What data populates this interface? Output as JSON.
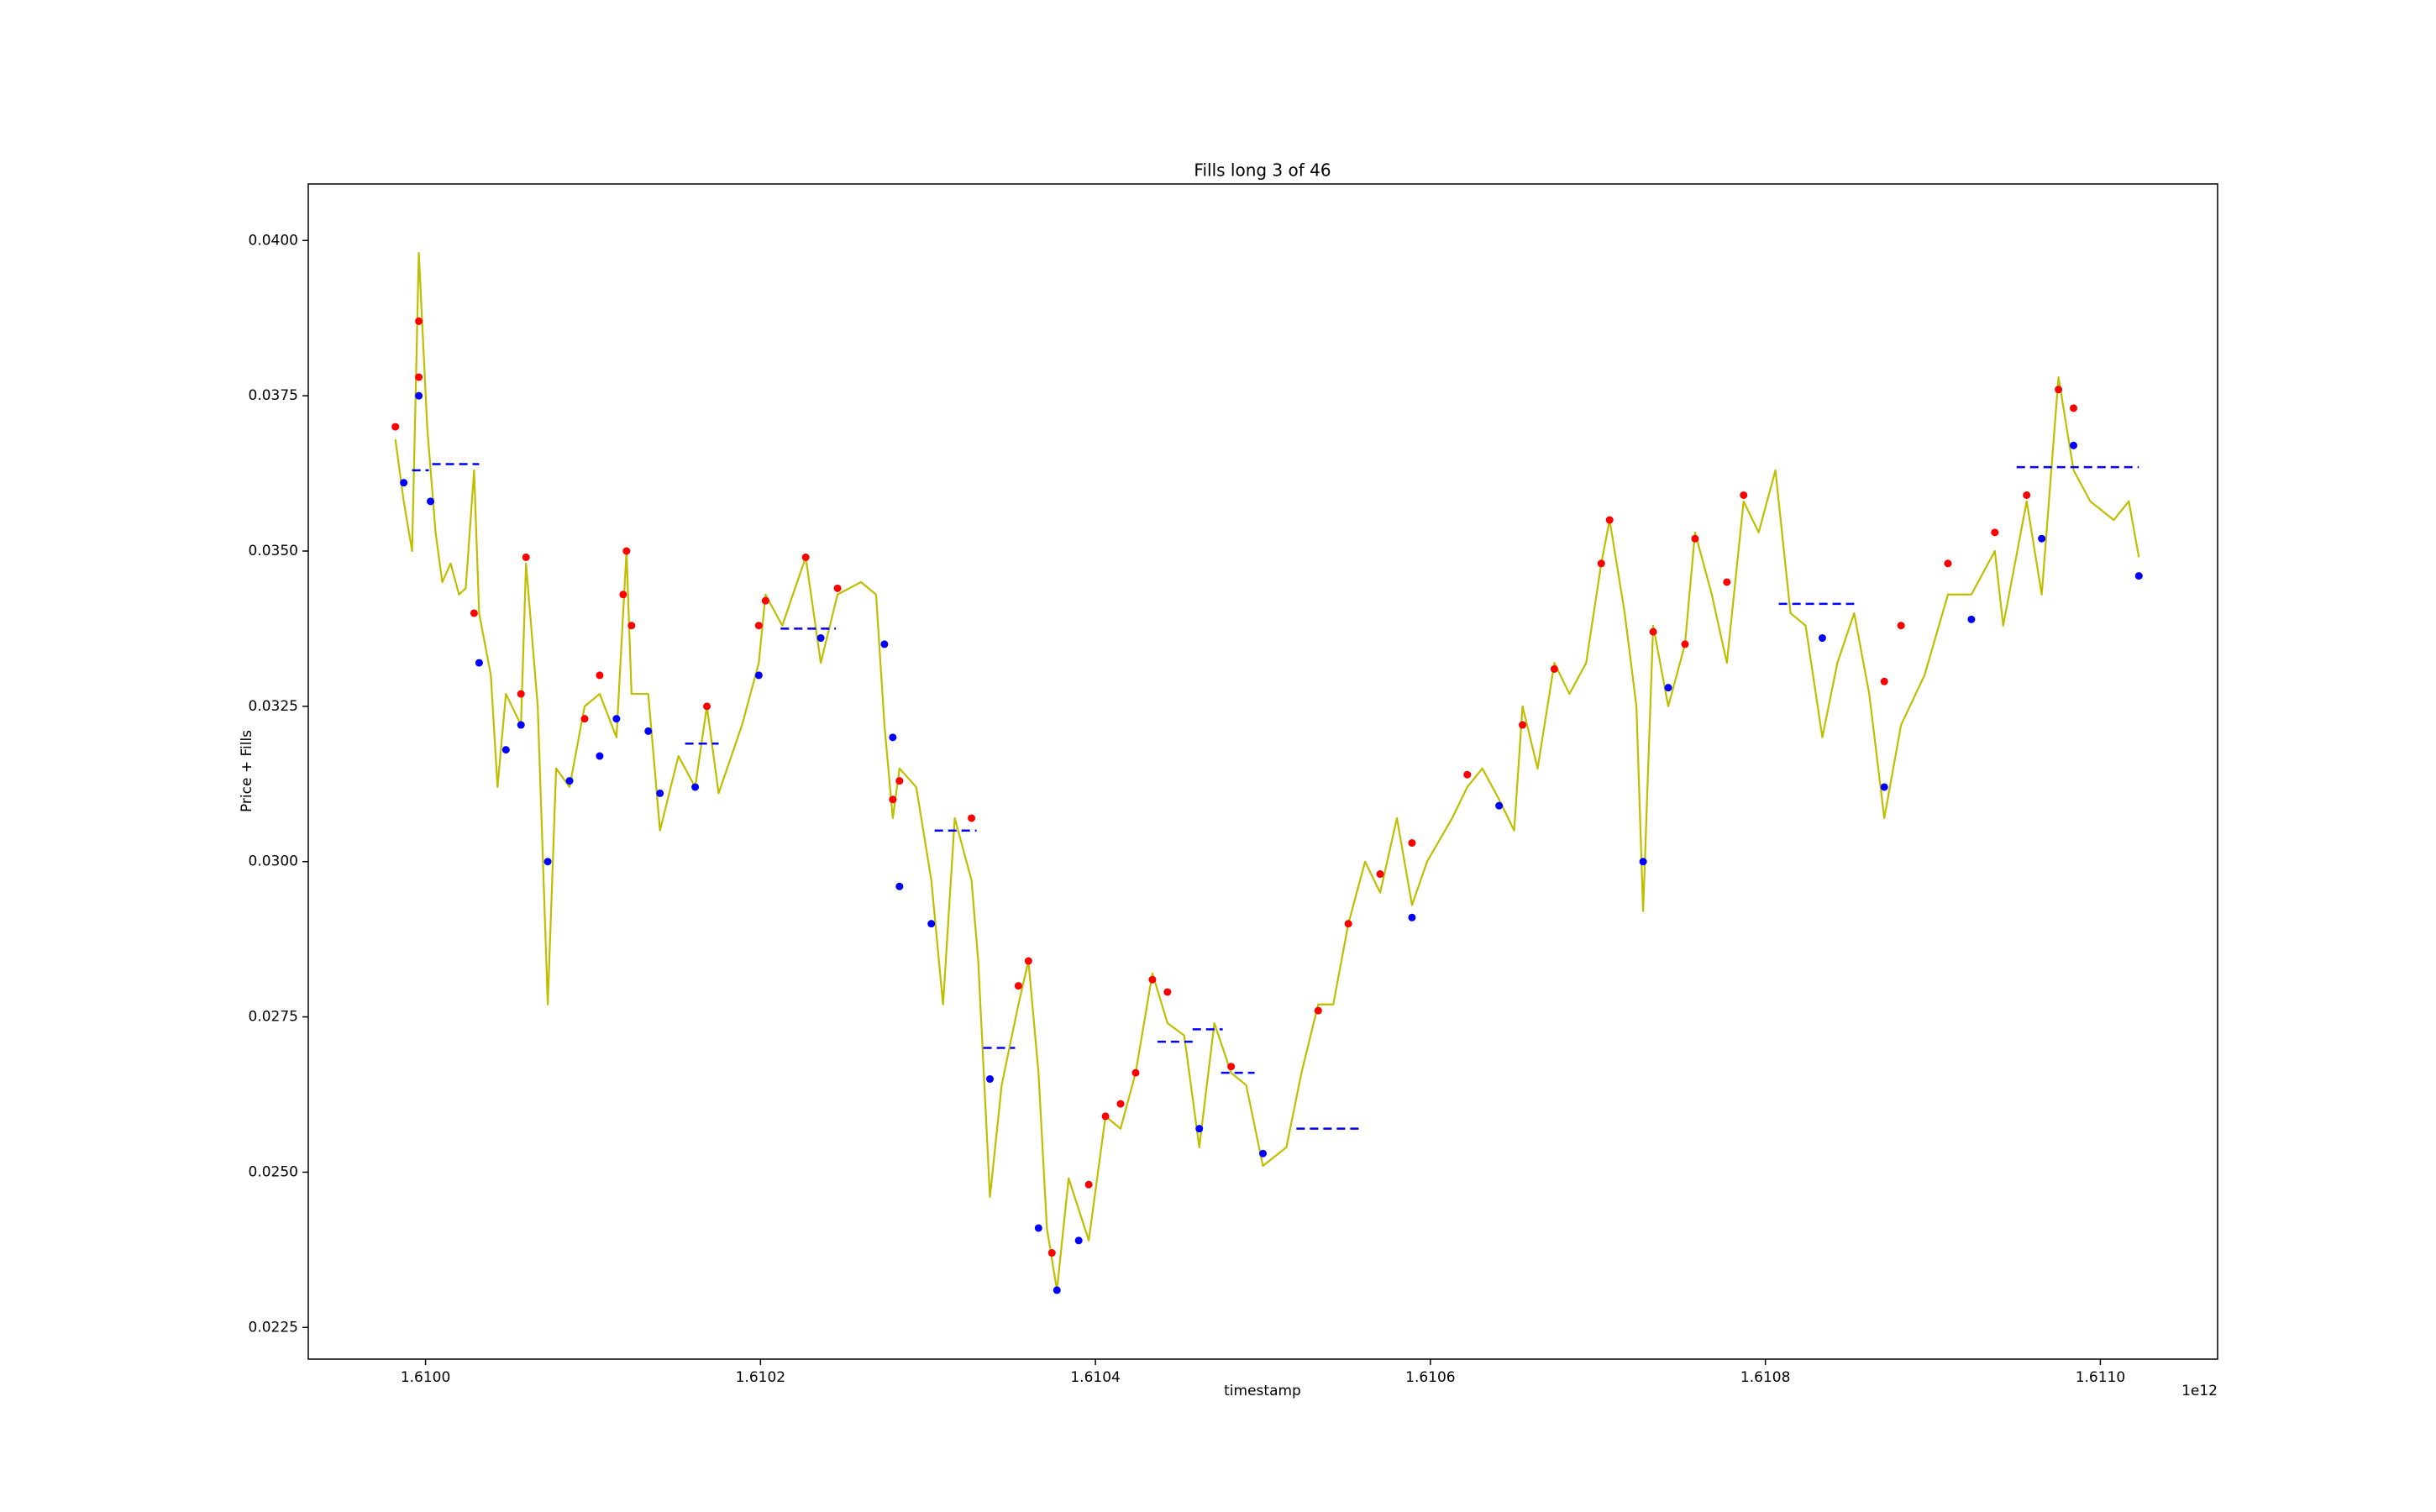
{
  "chart_data": {
    "type": "line",
    "title": "Fills long 3 of 46",
    "x_label": "timestamp",
    "y_label": "Price + Fills",
    "x_offset_label": "1e12",
    "xlim": [
      1.60993,
      1.61107
    ],
    "ylim": [
      0.02199,
      0.04091
    ],
    "xticks": [
      {
        "value": 1.61,
        "label": "1.6100"
      },
      1.6102,
      1.6104,
      1.6106,
      1.6108,
      {
        "value": 1.611,
        "label": "1.6110"
      }
    ],
    "yticks": [
      0.0225,
      {
        "value": 0.025,
        "label": "0.0250"
      },
      0.0275,
      {
        "value": 0.03,
        "label": "0.0300"
      },
      0.0325,
      {
        "value": 0.035,
        "label": "0.0350"
      },
      0.0375,
      {
        "value": 0.04,
        "label": "0.0400"
      }
    ],
    "series": [
      {
        "type": "line",
        "color": "#bfbf00",
        "x": [
          1.609982,
          1.609987,
          1.609992,
          1.609996,
          1.610001,
          1.610006,
          1.61001,
          1.610015,
          1.61002,
          1.610024,
          1.610029,
          1.610032,
          1.610039,
          1.610043,
          1.610048,
          1.610057,
          1.61006,
          1.610067,
          1.610073,
          1.610078,
          1.610086,
          1.610095,
          1.610104,
          1.610114,
          1.61012,
          1.610123,
          1.610133,
          1.61014,
          1.610151,
          1.610161,
          1.610168,
          1.610175,
          1.610189,
          1.610199,
          1.610203,
          1.610213,
          1.610227,
          1.610236,
          1.610246,
          1.61026,
          1.610269,
          1.610274,
          1.610279,
          1.610283,
          1.610293,
          1.610302,
          1.610309,
          1.610316,
          1.610326,
          1.61033,
          1.610337,
          1.610344,
          1.610354,
          1.61036,
          1.610366,
          1.610371,
          1.610377,
          1.610384,
          1.610396,
          1.610406,
          1.610415,
          1.610424,
          1.610434,
          1.610443,
          1.610453,
          1.610462,
          1.610471,
          1.610481,
          1.61049,
          1.6105,
          1.610514,
          1.610523,
          1.610533,
          1.610542,
          1.610551,
          1.610561,
          1.61057,
          1.61058,
          1.610589,
          1.610598,
          1.610613,
          1.610622,
          1.610631,
          1.610641,
          1.61065,
          1.610655,
          1.610664,
          1.610674,
          1.610683,
          1.610693,
          1.610702,
          1.610707,
          1.610716,
          1.610723,
          1.610727,
          1.610733,
          1.610742,
          1.610752,
          1.610758,
          1.610768,
          1.610777,
          1.610787,
          1.610796,
          1.610806,
          1.610815,
          1.610824,
          1.610834,
          1.610843,
          1.610853,
          1.610862,
          1.610871,
          1.610881,
          1.610895,
          1.610909,
          1.610923,
          1.610937,
          1.610942,
          1.610956,
          1.610965,
          1.610975,
          1.610984,
          1.610994,
          1.611008,
          1.611017,
          1.611023
        ],
        "values": [
          0.0368,
          0.0358,
          0.035,
          0.0398,
          0.037,
          0.0353,
          0.0345,
          0.0348,
          0.0343,
          0.0344,
          0.0363,
          0.034,
          0.033,
          0.0312,
          0.0327,
          0.0322,
          0.0348,
          0.0325,
          0.0277,
          0.0315,
          0.0312,
          0.0325,
          0.0327,
          0.032,
          0.035,
          0.0327,
          0.0327,
          0.0305,
          0.0317,
          0.0312,
          0.0325,
          0.0311,
          0.0322,
          0.0332,
          0.0343,
          0.0338,
          0.0349,
          0.0332,
          0.0343,
          0.0345,
          0.0343,
          0.0322,
          0.0307,
          0.0315,
          0.0312,
          0.0297,
          0.0277,
          0.0307,
          0.0297,
          0.0284,
          0.0246,
          0.0264,
          0.0277,
          0.0284,
          0.0266,
          0.0241,
          0.0231,
          0.0249,
          0.0239,
          0.0259,
          0.0257,
          0.0266,
          0.0282,
          0.0274,
          0.0272,
          0.0254,
          0.0274,
          0.0266,
          0.0264,
          0.0251,
          0.0254,
          0.0266,
          0.0277,
          0.0277,
          0.029,
          0.03,
          0.0295,
          0.0307,
          0.0293,
          0.03,
          0.0307,
          0.0312,
          0.0315,
          0.031,
          0.0305,
          0.0325,
          0.0315,
          0.0332,
          0.0327,
          0.0332,
          0.0348,
          0.0355,
          0.034,
          0.0325,
          0.0292,
          0.0338,
          0.0325,
          0.0335,
          0.0353,
          0.0343,
          0.0332,
          0.0358,
          0.0353,
          0.0363,
          0.034,
          0.0338,
          0.032,
          0.0332,
          0.034,
          0.0327,
          0.0307,
          0.0322,
          0.033,
          0.0343,
          0.0343,
          0.035,
          0.0338,
          0.0358,
          0.0343,
          0.0378,
          0.0363,
          0.0358,
          0.0355,
          0.0358,
          0.0349
        ]
      },
      {
        "type": "dashed",
        "color": "blue",
        "x": [
          1.609992,
          1.610002,
          null,
          1.610004,
          1.610032,
          null,
          1.610155,
          1.610175,
          null,
          1.610212,
          1.610245,
          null,
          1.610304,
          1.610329,
          null,
          1.610333,
          1.610352,
          null,
          1.610437,
          1.610458,
          null,
          1.610458,
          1.610476,
          null,
          1.610475,
          1.610495,
          null,
          1.61052,
          1.61056,
          null,
          1.610808,
          1.610853,
          null,
          1.61095,
          1.611023
        ],
        "values": [
          0.0363,
          0.0363,
          null,
          0.0364,
          0.0364,
          null,
          0.0319,
          0.0319,
          null,
          0.03375,
          0.03375,
          null,
          0.0305,
          0.0305,
          null,
          0.027,
          0.027,
          null,
          0.0271,
          0.0271,
          null,
          0.0273,
          0.0273,
          null,
          0.0266,
          0.0266,
          null,
          0.0257,
          0.0257,
          null,
          0.03415,
          0.03415,
          null,
          0.03635,
          0.03635
        ]
      },
      {
        "type": "scatter",
        "color": "red",
        "x": [
          1.609982,
          1.609996,
          1.609996,
          1.610029,
          1.61006,
          1.610057,
          1.610095,
          1.610104,
          1.61012,
          1.610118,
          1.610123,
          1.610168,
          1.610199,
          1.610203,
          1.610227,
          1.610246,
          1.610283,
          1.610279,
          1.610326,
          1.61036,
          1.610354,
          1.610374,
          1.610396,
          1.610406,
          1.610415,
          1.610424,
          1.610434,
          1.610443,
          1.610481,
          1.610533,
          1.610551,
          1.61057,
          1.610589,
          1.610622,
          1.610655,
          1.610674,
          1.610702,
          1.610707,
          1.610733,
          1.610752,
          1.610758,
          1.610777,
          1.610787,
          1.610871,
          1.610881,
          1.610909,
          1.610937,
          1.610956,
          1.610975,
          1.610984
        ],
        "values": [
          0.037,
          0.0387,
          0.0378,
          0.034,
          0.0349,
          0.0327,
          0.0323,
          0.033,
          0.035,
          0.0343,
          0.0338,
          0.0325,
          0.0338,
          0.0342,
          0.0349,
          0.0344,
          0.0313,
          0.031,
          0.0307,
          0.0284,
          0.028,
          0.0237,
          0.0248,
          0.0259,
          0.0261,
          0.0266,
          0.0281,
          0.0279,
          0.0267,
          0.0276,
          0.029,
          0.0298,
          0.0303,
          0.0314,
          0.0322,
          0.0331,
          0.0348,
          0.0355,
          0.0337,
          0.0335,
          0.0352,
          0.0345,
          0.0359,
          0.0329,
          0.0338,
          0.0348,
          0.0353,
          0.0359,
          0.0376,
          0.0373
        ]
      },
      {
        "type": "scatter",
        "color": "blue",
        "x": [
          1.609987,
          1.609996,
          1.610003,
          1.610032,
          1.610048,
          1.610057,
          1.610073,
          1.610086,
          1.610104,
          1.610114,
          1.610133,
          1.61014,
          1.610161,
          1.610199,
          1.610236,
          1.610274,
          1.610279,
          1.610283,
          1.610302,
          1.610337,
          1.610366,
          1.610377,
          1.61039,
          1.610462,
          1.6105,
          1.610589,
          1.610641,
          1.610727,
          1.610742,
          1.610834,
          1.610871,
          1.610923,
          1.610965,
          1.610984,
          1.611023
        ],
        "values": [
          0.0361,
          0.0375,
          0.0358,
          0.0332,
          0.0318,
          0.0322,
          0.03,
          0.0313,
          0.0317,
          0.0323,
          0.0321,
          0.0311,
          0.0312,
          0.033,
          0.0336,
          0.0335,
          0.032,
          0.0296,
          0.029,
          0.0265,
          0.0241,
          0.0231,
          0.0239,
          0.0257,
          0.0253,
          0.0291,
          0.0309,
          0.03,
          0.0328,
          0.0336,
          0.0312,
          0.0339,
          0.0352,
          0.0367,
          0.0346
        ]
      }
    ]
  }
}
